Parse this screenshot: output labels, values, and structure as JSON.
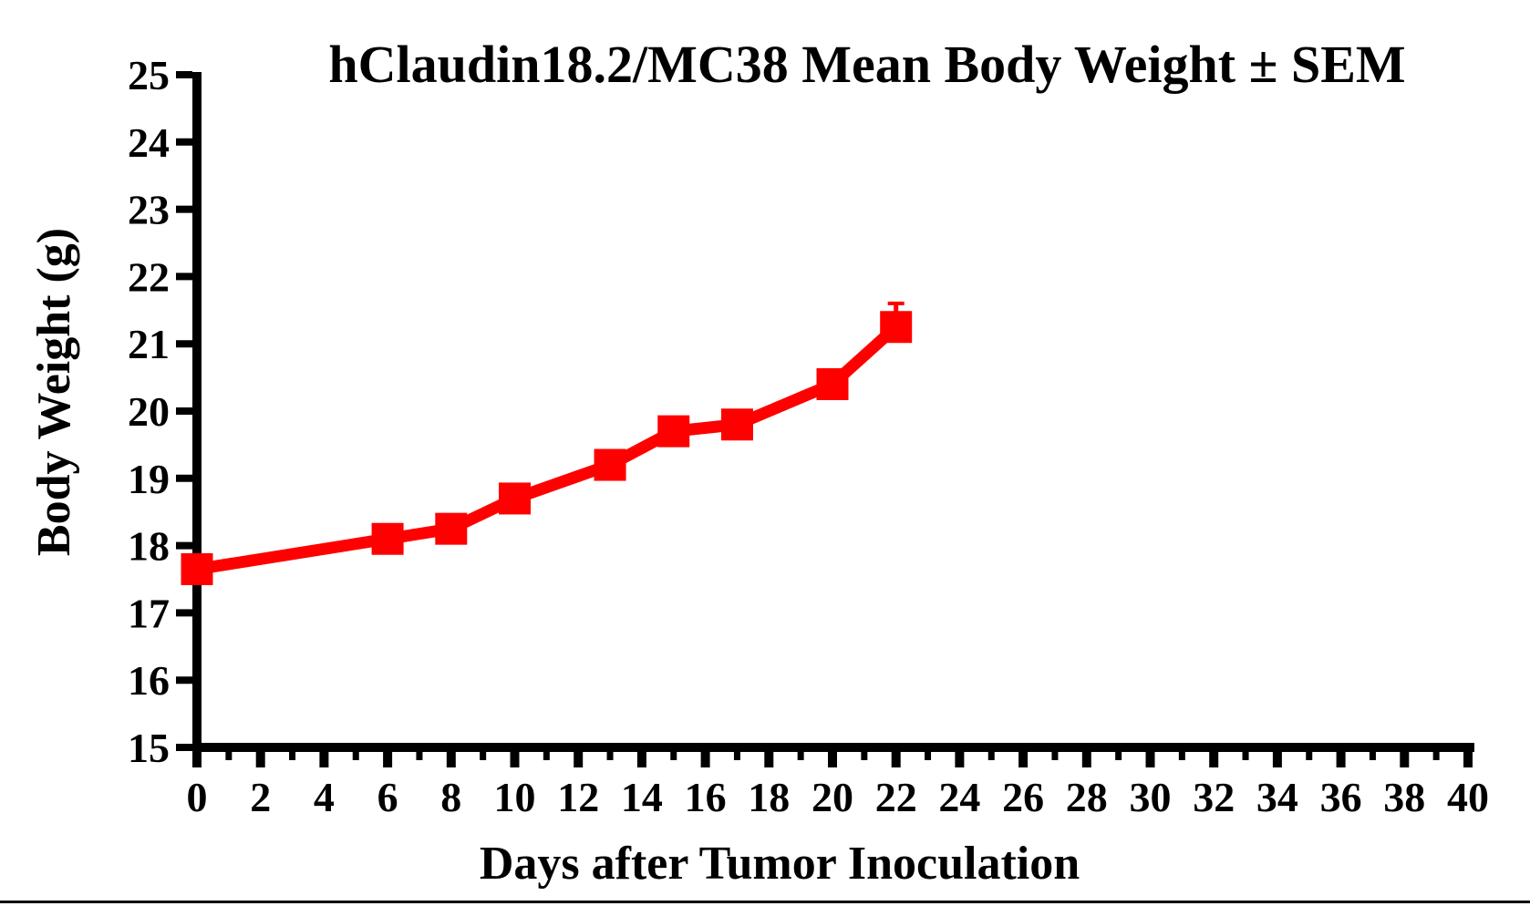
{
  "figure": {
    "background_color": "#ffffff",
    "bottom_rule_color": "#000000"
  },
  "chart_data": {
    "type": "line",
    "title": "hClaudin18.2/MC38 Mean Body Weight ± SEM",
    "xlabel": "Days after Tumor Inoculation",
    "ylabel": "Body Weight (g)",
    "xlim": [
      0,
      40
    ],
    "ylim": [
      15,
      25
    ],
    "grid": false,
    "legend_position": "none",
    "axis_color": "#000000",
    "tick_label_color": "#000000",
    "x_major_tick_step": 2,
    "x_minor_tick_step": 1,
    "y_major_tick_step": 1,
    "x_tick_labels": [
      0,
      2,
      4,
      6,
      8,
      10,
      12,
      14,
      16,
      18,
      20,
      22,
      24,
      26,
      28,
      30,
      32,
      34,
      36,
      38,
      40
    ],
    "y_tick_labels": [
      15,
      16,
      17,
      18,
      19,
      20,
      21,
      22,
      23,
      24,
      25
    ],
    "series": [
      {
        "name": "hClaudin18.2/MC38 Mean Body Weight",
        "color": "#FF0000",
        "marker": "filled-square",
        "x": [
          0,
          6,
          8,
          10,
          13,
          15,
          17,
          20,
          22
        ],
        "y": [
          17.65,
          18.1,
          18.25,
          18.7,
          19.2,
          19.7,
          19.8,
          20.4,
          21.25
        ],
        "error_bars_visible": [
          {
            "x": 22,
            "y": 21.25,
            "upper_sem": 0.35
          }
        ]
      }
    ]
  }
}
